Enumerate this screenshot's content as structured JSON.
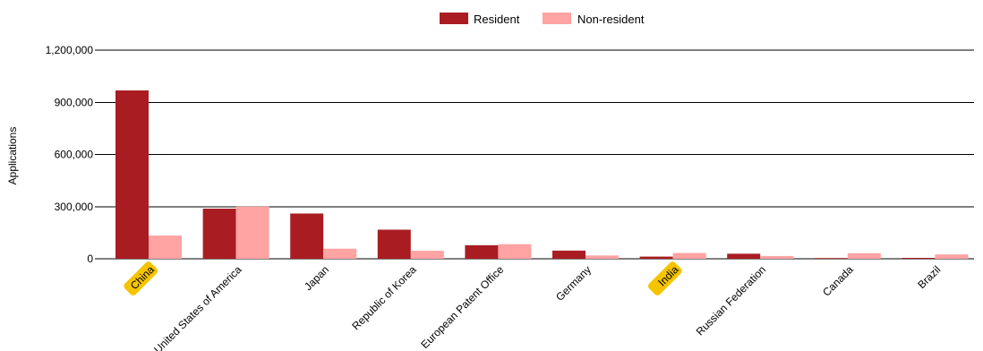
{
  "chart_data": {
    "type": "bar",
    "title": "",
    "xlabel": "",
    "ylabel": "Applications",
    "ylim": [
      0,
      1200000
    ],
    "yticks": [
      "0",
      "300,000",
      "600,000",
      "900,000",
      "1,200,000"
    ],
    "ytick_values": [
      0,
      300000,
      600000,
      900000,
      1200000
    ],
    "grid": true,
    "legend_position": "top-center",
    "categories": [
      "China",
      "United States of America",
      "Japan",
      "Republic of Korea",
      "European Patent Office",
      "Germany",
      "India",
      "Russian Federation",
      "Canada",
      "Brazil"
    ],
    "highlighted_categories": [
      "China",
      "India"
    ],
    "series": [
      {
        "name": "Resident",
        "color": "#a91d22",
        "values": [
          968252,
          288335,
          260244,
          167275,
          78000,
          47000,
          12500,
          29000,
          4200,
          5200
        ]
      },
      {
        "name": "Non-resident",
        "color": "#ffa3a3",
        "values": [
          133522,
          300000,
          58000,
          46000,
          84000,
          19000,
          33000,
          16000,
          32000,
          25000
        ]
      }
    ],
    "highlight_color": "#f5c400"
  }
}
